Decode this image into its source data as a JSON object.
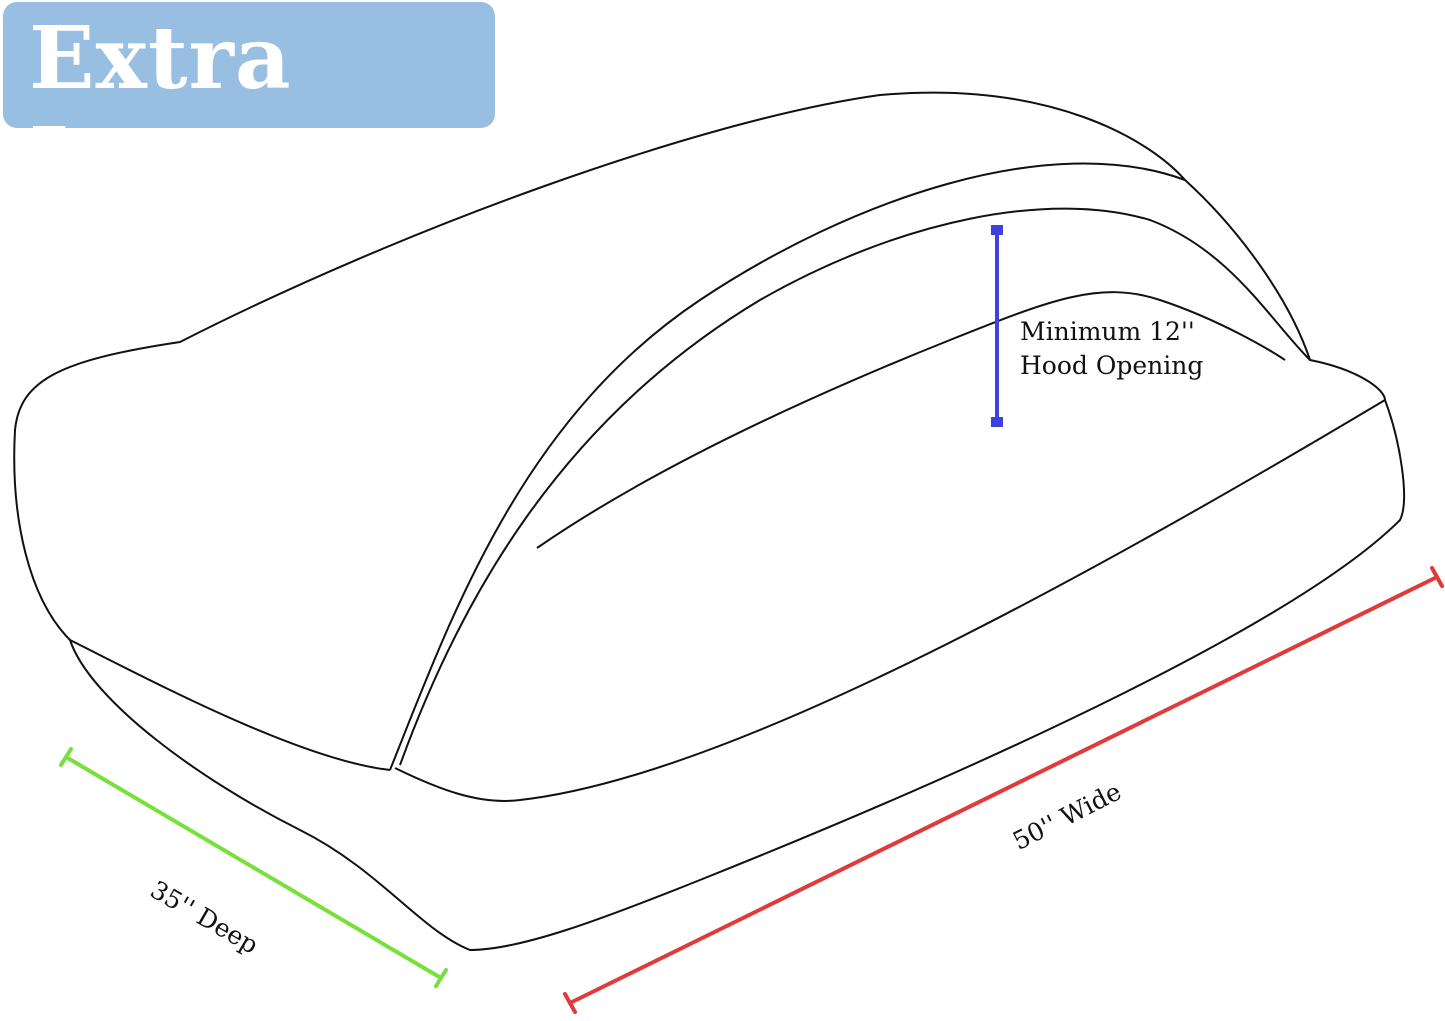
{
  "badge": {
    "text": "Extra Large",
    "color": "#98bfe2"
  },
  "measurements": {
    "hood": {
      "line1": "Minimum 12''",
      "line2": "Hood Opening",
      "color": "#4040e0"
    },
    "depth": {
      "text": "35'' Deep",
      "color": "#77e03a"
    },
    "width": {
      "text": "50'' Wide",
      "color": "#e03a3a"
    }
  }
}
